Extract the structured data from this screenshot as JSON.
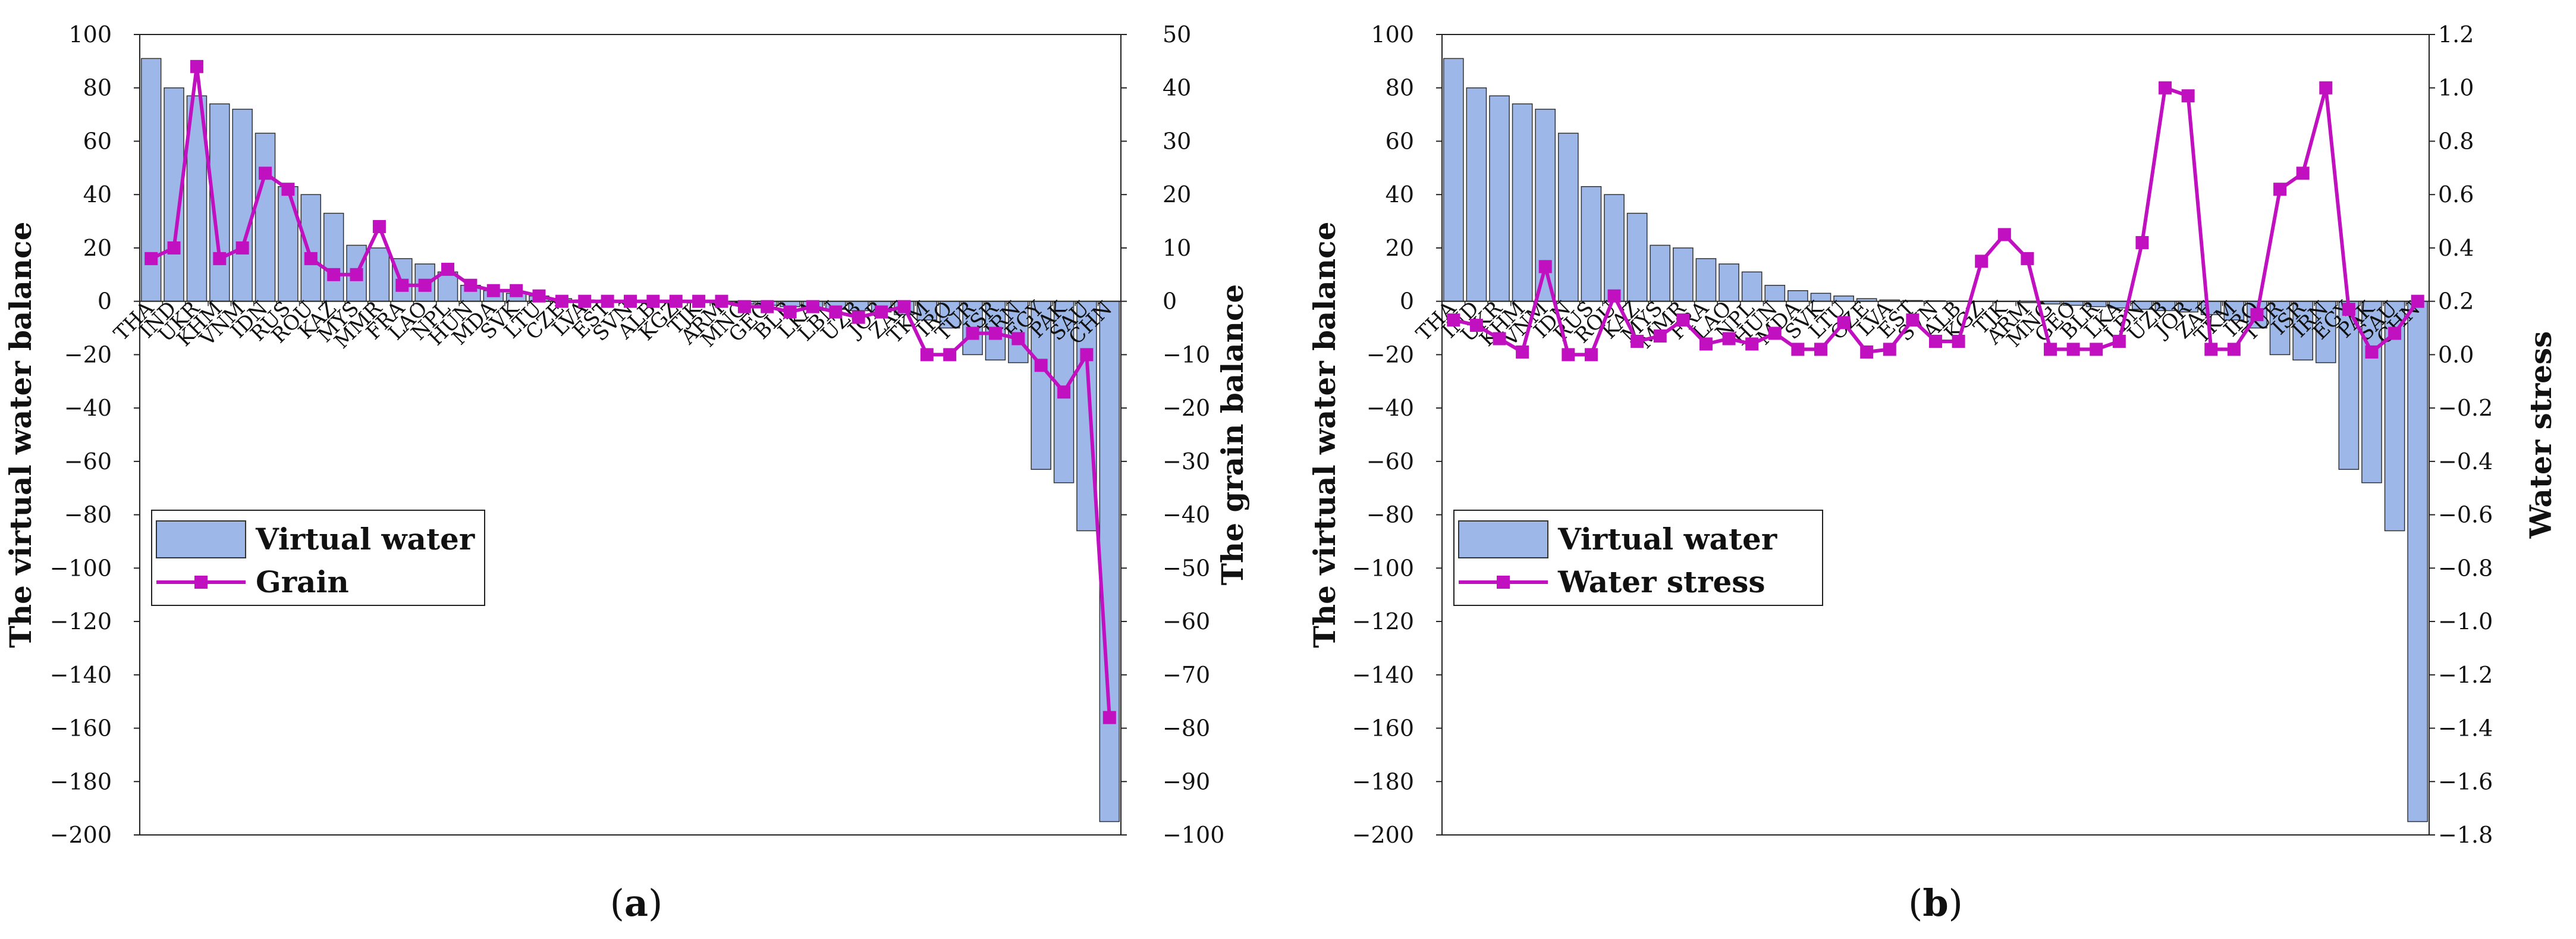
{
  "chart_data": [
    {
      "type": "bar",
      "panel": "a",
      "caption_letter": "a",
      "title": "",
      "xlabel": "",
      "ylabel": "The virtual water balance",
      "y2label": "The grain balance",
      "ylim": [
        -200,
        100
      ],
      "ytick_step": 20,
      "y2lim": [
        -100,
        50
      ],
      "y2tick_step": 10,
      "legend_position": "lower-left",
      "categories": [
        "THA",
        "IND",
        "UKR",
        "KHM",
        "VNM",
        "IDN",
        "RUS",
        "ROU",
        "KAZ",
        "MYS",
        "MMR",
        "FRA",
        "LAO",
        "NPL",
        "HUN",
        "MDA",
        "SVK",
        "LTU",
        "CZE",
        "LVA",
        "EST",
        "SVN",
        "ALB",
        "KGZ",
        "TJK",
        "ARM",
        "MNG",
        "GEO",
        "BLR",
        "LKA",
        "LBN",
        "UZB",
        "JOR",
        "ZAF",
        "TKM",
        "IRQ",
        "TUR",
        "ISR",
        "IRN",
        "EGY",
        "PAK",
        "SAU",
        "CHN"
      ],
      "series": [
        {
          "name": "Virtual water",
          "kind": "bar",
          "axis": "left",
          "color": "#9DB7E8",
          "values": [
            91,
            80,
            77,
            74,
            72,
            63,
            43,
            40,
            33,
            21,
            20,
            16,
            14,
            11,
            6,
            4,
            3,
            2,
            1,
            0.5,
            0.3,
            0.2,
            0.1,
            0,
            0,
            -0.5,
            -1,
            -1.5,
            -2,
            -2.5,
            -3,
            -3.5,
            -4,
            -5,
            -7,
            -10,
            -20,
            -22,
            -23,
            -63,
            -68,
            -86,
            -195
          ]
        },
        {
          "name": "Grain",
          "kind": "line",
          "axis": "right",
          "color": "#C010C0",
          "values": [
            8,
            10,
            44,
            8,
            10,
            24,
            21,
            8,
            5,
            5,
            14,
            3,
            3,
            6,
            3,
            2,
            2,
            1,
            0,
            0,
            0,
            0,
            0,
            0,
            0,
            0,
            -1,
            -1,
            -2,
            -1,
            -2,
            -3,
            -2,
            -1,
            -10,
            -10,
            -6,
            -6,
            -7,
            -12,
            -17,
            -10,
            -78
          ]
        }
      ]
    },
    {
      "type": "bar",
      "panel": "b",
      "caption_letter": "b",
      "title": "",
      "xlabel": "",
      "ylabel": "The virtual water balance",
      "y2label": "Water stress",
      "ylim": [
        -200,
        100
      ],
      "ytick_step": 20,
      "y2lim": [
        -1.8,
        1.2
      ],
      "y2tick_step": 0.2,
      "legend_position": "lower-left",
      "categories": [
        "THA",
        "IND",
        "UKR",
        "KHM",
        "VNM",
        "IDN",
        "RUS",
        "ROU",
        "KAZ",
        "MYS",
        "MMR",
        "FRA",
        "LAO",
        "NPL",
        "HUN",
        "MDA",
        "SVK",
        "LTU",
        "CZE",
        "LVA",
        "EST",
        "SVN",
        "ALB",
        "KGZ",
        "TJK",
        "ARM",
        "MNG",
        "GEO",
        "BLR",
        "LKA",
        "LBN",
        "UZB",
        "JOR",
        "ZAF",
        "TKM",
        "IRQ",
        "TUR",
        "ISR",
        "IRN",
        "EGY",
        "PAK",
        "SAU",
        "CHN"
      ],
      "series": [
        {
          "name": "Virtual water",
          "kind": "bar",
          "axis": "left",
          "color": "#9DB7E8",
          "values": [
            91,
            80,
            77,
            74,
            72,
            63,
            43,
            40,
            33,
            21,
            20,
            16,
            14,
            11,
            6,
            4,
            3,
            2,
            1,
            0.5,
            0.3,
            0.2,
            0.1,
            0,
            0,
            -0.5,
            -1,
            -1.5,
            -2,
            -2.5,
            -3,
            -3.5,
            -4,
            -5,
            -7,
            -10,
            -20,
            -22,
            -23,
            -63,
            -68,
            -86,
            -195
          ]
        },
        {
          "name": "Water stress",
          "kind": "line",
          "axis": "right",
          "color": "#C010C0",
          "values": [
            0.13,
            0.11,
            0.06,
            0.01,
            0.33,
            0.0,
            0.0,
            0.22,
            0.05,
            0.07,
            0.13,
            0.04,
            0.06,
            0.04,
            0.08,
            0.02,
            0.02,
            0.12,
            0.01,
            0.02,
            0.13,
            0.05,
            0.05,
            0.35,
            0.45,
            0.36,
            0.02,
            0.02,
            0.02,
            0.05,
            0.42,
            1.0,
            0.97,
            0.02,
            0.02,
            0.15,
            0.62,
            0.68,
            1.0,
            0.17,
            0.01,
            0.08,
            0.2
          ]
        }
      ]
    }
  ]
}
